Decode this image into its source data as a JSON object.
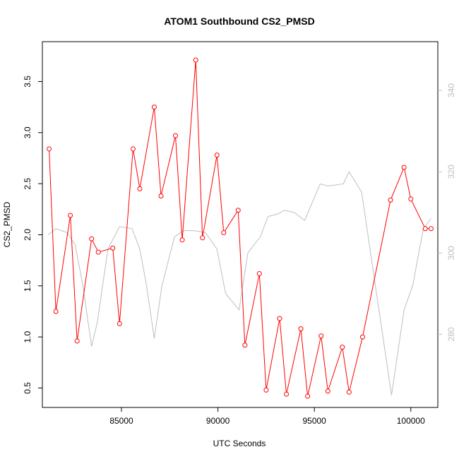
{
  "chart_data": {
    "type": "line",
    "title": "ATOM1 Southbound CS2_PMSD",
    "xlabel": "UTC Seconds",
    "ylabel": "CS2_PMSD",
    "xlim": [
      80900,
      101400
    ],
    "ylim": [
      0.31,
      3.89
    ],
    "y2lim": [
      262,
      352
    ],
    "x_ticks": [
      85000,
      90000,
      95000,
      100000
    ],
    "x_tick_labels": [
      "85000",
      "90000",
      "95000",
      "100000"
    ],
    "y_ticks": [
      0.5,
      1.0,
      1.5,
      2.0,
      2.5,
      3.0,
      3.5
    ],
    "y_tick_labels": [
      "0.5",
      "1.0",
      "1.5",
      "2.0",
      "2.5",
      "3.0",
      "3.5"
    ],
    "y2_ticks": [
      280,
      300,
      320,
      340
    ],
    "y2_tick_labels": [
      "280",
      "300",
      "320",
      "340"
    ],
    "grid": false,
    "series": [
      {
        "axis": "left",
        "color": "#ff0000",
        "line_style": "line+open-circles",
        "points": [
          [
            81250,
            2.84
          ],
          [
            81600,
            1.25
          ],
          [
            82350,
            2.19
          ],
          [
            82700,
            0.96
          ],
          [
            83450,
            1.96
          ],
          [
            83800,
            1.83
          ],
          [
            84550,
            1.87
          ],
          [
            84900,
            1.13
          ],
          [
            85600,
            2.84
          ],
          [
            85950,
            2.45
          ],
          [
            86700,
            3.25
          ],
          [
            87050,
            2.38
          ],
          [
            87800,
            2.97
          ],
          [
            88150,
            1.95
          ],
          [
            88850,
            3.71
          ],
          [
            89200,
            1.97
          ],
          [
            89950,
            2.78
          ],
          [
            90300,
            2.02
          ],
          [
            91050,
            2.24
          ],
          [
            91400,
            0.92
          ],
          [
            92150,
            1.62
          ],
          [
            92500,
            0.48
          ],
          [
            93200,
            1.18
          ],
          [
            93550,
            0.44
          ],
          [
            94300,
            1.08
          ],
          [
            94650,
            0.42
          ],
          [
            95350,
            1.01
          ],
          [
            95700,
            0.47
          ],
          [
            96450,
            0.9
          ],
          [
            96800,
            0.46
          ],
          [
            97500,
            1.0
          ],
          [
            98950,
            2.34
          ],
          [
            99650,
            2.66
          ],
          [
            100000,
            2.35
          ],
          [
            100750,
            2.06
          ],
          [
            101050,
            2.06
          ]
        ]
      },
      {
        "axis": "right",
        "color": "#bebebe",
        "line_style": "line",
        "points": [
          [
            81200,
            304.5
          ],
          [
            81600,
            306
          ],
          [
            82200,
            305
          ],
          [
            82600,
            302
          ],
          [
            83000,
            292
          ],
          [
            83450,
            277
          ],
          [
            83750,
            283
          ],
          [
            84300,
            301
          ],
          [
            84900,
            306.5
          ],
          [
            85550,
            306
          ],
          [
            85950,
            301
          ],
          [
            86300,
            292
          ],
          [
            86700,
            279
          ],
          [
            87100,
            292
          ],
          [
            87750,
            304
          ],
          [
            88200,
            305.5
          ],
          [
            88800,
            305.5
          ],
          [
            89350,
            305
          ],
          [
            89950,
            301
          ],
          [
            90400,
            290
          ],
          [
            91100,
            286
          ],
          [
            91550,
            300
          ],
          [
            92200,
            304
          ],
          [
            92600,
            309
          ],
          [
            93050,
            309.5
          ],
          [
            93450,
            310.5
          ],
          [
            93950,
            310
          ],
          [
            94500,
            308
          ],
          [
            95300,
            317
          ],
          [
            95700,
            316.5
          ],
          [
            96500,
            317
          ],
          [
            96800,
            320
          ],
          [
            97450,
            315
          ],
          [
            99000,
            265
          ],
          [
            99650,
            286
          ],
          [
            100100,
            292
          ],
          [
            100650,
            306
          ],
          [
            101050,
            308.5
          ]
        ]
      }
    ]
  }
}
